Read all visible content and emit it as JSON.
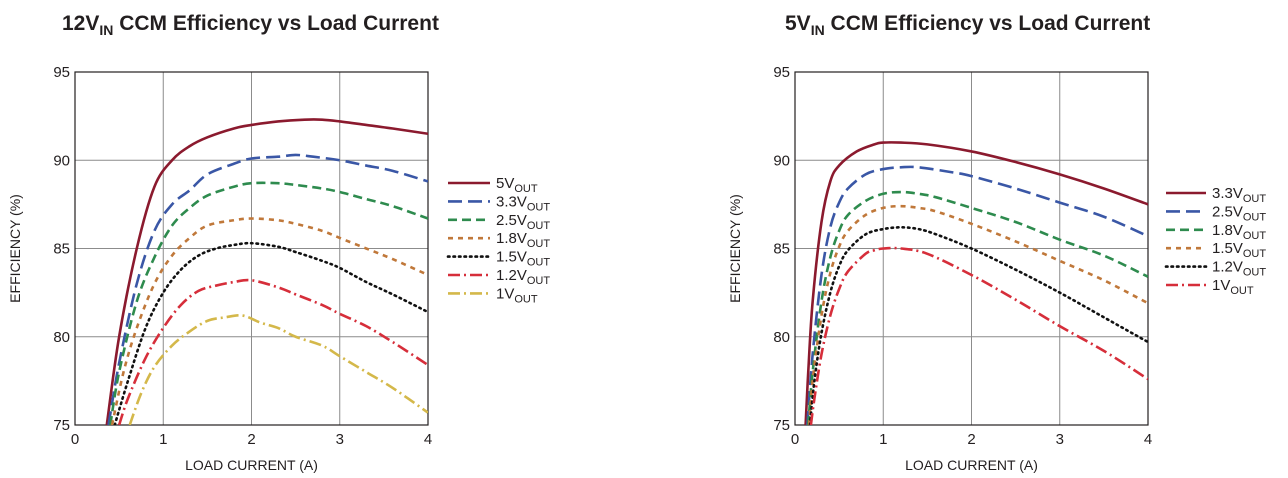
{
  "chart_data": [
    {
      "type": "line",
      "title_main": "12V",
      "title_sub": "IN",
      "title_rest": " CCM Efficiency vs Load Current",
      "xlabel": "LOAD CURRENT (A)",
      "ylabel": "EFFICIENCY (%)",
      "xlim": [
        0,
        4
      ],
      "ylim": [
        75,
        95
      ],
      "xticks": [
        "0",
        "1",
        "2",
        "3",
        "4"
      ],
      "yticks": [
        "75",
        "80",
        "85",
        "90",
        "95"
      ],
      "grid": true,
      "legend_position": "right",
      "series": [
        {
          "name_main": "5V",
          "name_sub": "OUT",
          "color": "#8b1a2e",
          "dash": "solid",
          "x": [
            0.36,
            0.5,
            0.7,
            0.9,
            1.1,
            1.3,
            1.5,
            1.8,
            2.0,
            2.3,
            2.6,
            2.8,
            3.0,
            3.3,
            3.6,
            4.0
          ],
          "y": [
            75,
            80,
            85,
            88.5,
            90.0,
            90.8,
            91.3,
            91.8,
            92.0,
            92.2,
            92.3,
            92.3,
            92.2,
            92.0,
            91.8,
            91.5
          ]
        },
        {
          "name_main": "3.3V",
          "name_sub": "OUT",
          "color": "#3a57a6",
          "dash": "longdash",
          "x": [
            0.38,
            0.5,
            0.7,
            0.9,
            1.1,
            1.3,
            1.5,
            1.8,
            2.0,
            2.3,
            2.5,
            2.7,
            3.0,
            3.3,
            3.6,
            4.0
          ],
          "y": [
            75,
            78.5,
            83,
            86,
            87.5,
            88.3,
            89.2,
            89.8,
            90.1,
            90.2,
            90.3,
            90.2,
            90.0,
            89.7,
            89.4,
            88.8
          ]
        },
        {
          "name_main": "2.5V",
          "name_sub": "OUT",
          "color": "#2e8b4e",
          "dash": "dash",
          "x": [
            0.4,
            0.5,
            0.7,
            0.9,
            1.1,
            1.3,
            1.5,
            1.8,
            2.0,
            2.3,
            2.5,
            2.8,
            3.0,
            3.3,
            3.6,
            4.0
          ],
          "y": [
            75,
            78,
            82,
            84.5,
            86.3,
            87.3,
            88.0,
            88.5,
            88.7,
            88.7,
            88.6,
            88.4,
            88.2,
            87.8,
            87.4,
            86.7
          ]
        },
        {
          "name_main": "1.8V",
          "name_sub": "OUT",
          "color": "#c0783a",
          "dash": "shortdash",
          "x": [
            0.42,
            0.55,
            0.7,
            0.9,
            1.1,
            1.3,
            1.5,
            1.8,
            2.0,
            2.3,
            2.5,
            2.8,
            3.0,
            3.3,
            3.6,
            4.0
          ],
          "y": [
            75,
            78,
            80.5,
            83,
            84.6,
            85.6,
            86.3,
            86.6,
            86.7,
            86.6,
            86.4,
            86.0,
            85.6,
            85.0,
            84.4,
            83.5
          ]
        },
        {
          "name_main": "1.5V",
          "name_sub": "OUT",
          "color": "#111111",
          "dash": "dot",
          "x": [
            0.45,
            0.6,
            0.8,
            1.0,
            1.2,
            1.4,
            1.6,
            1.8,
            2.0,
            2.3,
            2.5,
            2.8,
            3.0,
            3.3,
            3.6,
            4.0
          ],
          "y": [
            75,
            77.5,
            80.5,
            82.5,
            83.8,
            84.6,
            85.0,
            85.2,
            85.3,
            85.1,
            84.8,
            84.3,
            83.9,
            83.1,
            82.4,
            81.4
          ]
        },
        {
          "name_main": "1.2V",
          "name_sub": "OUT",
          "color": "#d62e3a",
          "dash": "dashdot",
          "x": [
            0.5,
            0.6,
            0.8,
            1.0,
            1.2,
            1.4,
            1.6,
            1.8,
            2.0,
            2.3,
            2.5,
            2.8,
            3.0,
            3.3,
            3.6,
            4.0
          ],
          "y": [
            75,
            76.5,
            78.8,
            80.5,
            81.8,
            82.6,
            82.9,
            83.1,
            83.2,
            82.8,
            82.4,
            81.8,
            81.3,
            80.6,
            79.7,
            78.4
          ]
        },
        {
          "name_main": "1V",
          "name_sub": "OUT",
          "color": "#d4b84a",
          "dash": "dashdot",
          "x": [
            0.62,
            0.75,
            0.9,
            1.1,
            1.3,
            1.5,
            1.7,
            1.9,
            2.1,
            2.3,
            2.5,
            2.8,
            3.0,
            3.3,
            3.6,
            4.0
          ],
          "y": [
            75,
            76.8,
            78.3,
            79.5,
            80.3,
            80.9,
            81.1,
            81.2,
            80.8,
            80.5,
            80.0,
            79.5,
            78.9,
            78.0,
            77.1,
            75.7
          ]
        }
      ]
    },
    {
      "type": "line",
      "title_main": "5V",
      "title_sub": "IN",
      "title_rest": " CCM Efficiency vs Load Current",
      "xlabel": "LOAD CURRENT (A)",
      "ylabel": "EFFICIENCY (%)",
      "xlim": [
        0,
        4
      ],
      "ylim": [
        75,
        95
      ],
      "xticks": [
        "0",
        "1",
        "2",
        "3",
        "4"
      ],
      "yticks": [
        "75",
        "80",
        "85",
        "90",
        "95"
      ],
      "grid": true,
      "legend_position": "right",
      "series": [
        {
          "name_main": "3.3V",
          "name_sub": "OUT",
          "color": "#8b1a2e",
          "dash": "solid",
          "x": [
            0.12,
            0.15,
            0.2,
            0.3,
            0.4,
            0.5,
            0.7,
            0.9,
            1.0,
            1.2,
            1.5,
            2.0,
            2.5,
            3.0,
            3.5,
            4.0
          ],
          "y": [
            75,
            78,
            82,
            86.5,
            88.8,
            89.7,
            90.5,
            90.9,
            91.0,
            91.0,
            90.9,
            90.5,
            89.9,
            89.2,
            88.4,
            87.5
          ]
        },
        {
          "name_main": "2.5V",
          "name_sub": "OUT",
          "color": "#3a57a6",
          "dash": "longdash",
          "x": [
            0.14,
            0.2,
            0.3,
            0.4,
            0.5,
            0.6,
            0.8,
            1.0,
            1.2,
            1.4,
            1.8,
            2.0,
            2.5,
            3.0,
            3.5,
            4.0
          ],
          "y": [
            75,
            79,
            83.5,
            86.2,
            87.6,
            88.4,
            89.2,
            89.5,
            89.6,
            89.6,
            89.3,
            89.1,
            88.4,
            87.6,
            86.8,
            85.7
          ]
        },
        {
          "name_main": "1.8V",
          "name_sub": "OUT",
          "color": "#2e8b4e",
          "dash": "dash",
          "x": [
            0.15,
            0.2,
            0.3,
            0.4,
            0.5,
            0.6,
            0.8,
            1.0,
            1.2,
            1.4,
            1.6,
            2.0,
            2.5,
            3.0,
            3.5,
            4.0
          ],
          "y": [
            75,
            78,
            82,
            84.5,
            86,
            86.9,
            87.7,
            88.1,
            88.2,
            88.1,
            87.9,
            87.3,
            86.5,
            85.5,
            84.6,
            83.4
          ]
        },
        {
          "name_main": "1.5V",
          "name_sub": "OUT",
          "color": "#c0783a",
          "dash": "shortdash",
          "x": [
            0.16,
            0.2,
            0.3,
            0.4,
            0.5,
            0.6,
            0.8,
            1.0,
            1.2,
            1.4,
            1.6,
            2.0,
            2.5,
            3.0,
            3.5,
            4.0
          ],
          "y": [
            75,
            77.5,
            81.2,
            83.6,
            85.1,
            86.0,
            86.9,
            87.3,
            87.4,
            87.3,
            87.1,
            86.4,
            85.4,
            84.3,
            83.2,
            81.9
          ]
        },
        {
          "name_main": "1.2V",
          "name_sub": "OUT",
          "color": "#111111",
          "dash": "dot",
          "x": [
            0.17,
            0.22,
            0.3,
            0.4,
            0.5,
            0.6,
            0.8,
            1.0,
            1.2,
            1.4,
            1.6,
            2.0,
            2.5,
            3.0,
            3.5,
            4.0
          ],
          "y": [
            75,
            77.5,
            80.2,
            82.5,
            84.0,
            84.9,
            85.8,
            86.1,
            86.2,
            86.1,
            85.8,
            85.0,
            83.8,
            82.5,
            81.1,
            79.7
          ]
        },
        {
          "name_main": "1V",
          "name_sub": "OUT",
          "color": "#d62e3a",
          "dash": "dashdot",
          "x": [
            0.18,
            0.22,
            0.3,
            0.4,
            0.5,
            0.6,
            0.8,
            0.9,
            1.0,
            1.2,
            1.5,
            2.0,
            2.5,
            3.0,
            3.5,
            4.0
          ],
          "y": [
            75,
            76.5,
            79,
            81.2,
            82.7,
            83.7,
            84.7,
            84.9,
            85.0,
            85.0,
            84.7,
            83.5,
            82.1,
            80.6,
            79.2,
            77.6
          ]
        }
      ]
    }
  ]
}
